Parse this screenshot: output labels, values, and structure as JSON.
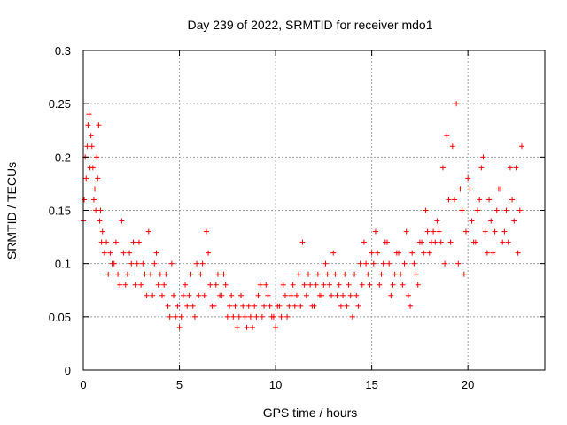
{
  "chart_data": {
    "type": "scatter",
    "title": "Day 239 of 2022, SRMTID for receiver mdo1",
    "xlabel": "GPS time / hours",
    "ylabel": "SRMTID / TECUs",
    "xlim": [
      0,
      24
    ],
    "ylim": [
      0,
      0.3
    ],
    "xticks": [
      0,
      5,
      10,
      15,
      20
    ],
    "xtick_labels": [
      "0",
      "5",
      "10",
      "15",
      "20"
    ],
    "yticks": [
      0,
      0.05,
      0.1,
      0.15,
      0.2,
      0.25,
      0.3
    ],
    "ytick_labels": [
      "0",
      "0.05",
      "0.1",
      "0.15",
      "0.2",
      "0.25",
      "0.3"
    ],
    "grid": true,
    "marker": "+",
    "color": "#ff0000",
    "series": [
      {
        "name": "mdo1",
        "x": [
          0.0,
          0.1,
          0.2,
          0.3,
          0.4,
          0.5,
          0.6,
          0.7,
          0.8,
          0.9,
          1.0,
          1.2,
          1.4,
          1.6,
          1.8,
          2.0,
          2.2,
          2.4,
          2.6,
          2.8,
          3.0,
          3.2,
          3.4,
          3.6,
          3.8,
          4.0,
          4.2,
          4.4,
          4.6,
          4.8,
          5.0,
          5.2,
          5.4,
          5.6,
          5.8,
          6.0,
          6.2,
          6.4,
          6.6,
          6.8,
          7.0,
          7.2,
          7.4,
          7.6,
          7.8,
          8.0,
          8.2,
          8.4,
          8.6,
          8.8,
          9.0,
          9.2,
          9.4,
          9.6,
          9.8,
          10.0,
          10.2,
          10.4,
          10.6,
          10.8,
          11.0,
          11.2,
          11.4,
          11.6,
          11.8,
          12.0,
          12.2,
          12.4,
          12.6,
          12.8,
          13.0,
          13.2,
          13.4,
          13.6,
          13.8,
          14.0,
          14.2,
          14.4,
          14.6,
          14.8,
          15.0,
          15.2,
          15.4,
          15.6,
          15.8,
          16.0,
          16.2,
          16.4,
          16.6,
          16.8,
          17.0,
          17.2,
          17.4,
          17.6,
          17.8,
          18.0,
          18.2,
          18.4,
          18.6,
          18.8,
          19.0,
          19.2,
          19.4,
          19.6,
          19.8,
          20.0,
          20.2,
          20.4,
          20.6,
          20.8,
          21.0,
          21.2,
          21.4,
          21.6,
          21.8,
          22.0,
          22.2,
          22.4,
          22.6,
          22.8,
          0.05,
          0.15,
          0.25,
          0.35,
          0.45,
          0.55,
          0.65,
          0.75,
          0.85,
          0.95,
          1.1,
          1.3,
          1.5,
          1.7,
          1.9,
          2.1,
          2.3,
          2.5,
          2.7,
          2.9,
          3.1,
          3.3,
          3.5,
          3.7,
          3.9,
          4.1,
          4.3,
          4.5,
          4.7,
          4.9,
          5.1,
          5.3,
          5.5,
          5.7,
          5.9,
          6.1,
          6.3,
          6.5,
          6.7,
          6.9,
          7.1,
          7.3,
          7.5,
          7.7,
          7.9,
          8.1,
          8.3,
          8.5,
          8.7,
          8.9,
          9.1,
          9.3,
          9.5,
          9.7,
          9.9,
          10.1,
          10.3,
          10.5,
          10.7,
          10.9,
          11.1,
          11.3,
          11.5,
          11.7,
          11.9,
          12.1,
          12.3,
          12.5,
          12.7,
          12.9,
          13.1,
          13.3,
          13.5,
          13.7,
          13.9,
          14.1,
          14.3,
          14.5,
          14.7,
          14.9,
          15.1,
          15.3,
          15.5,
          15.7,
          15.9,
          16.1,
          16.3,
          16.5,
          16.7,
          16.9,
          17.1,
          17.3,
          17.5,
          17.7,
          17.9,
          18.1,
          18.3,
          18.5,
          18.7,
          18.9,
          19.1,
          19.3,
          19.5,
          19.7,
          19.9,
          20.1,
          20.3,
          20.5,
          20.7,
          20.9,
          21.1,
          21.3,
          21.5,
          21.7,
          21.9,
          22.1,
          22.3,
          22.5,
          22.7
        ],
        "y": [
          0.14,
          0.2,
          0.21,
          0.24,
          0.22,
          0.19,
          0.17,
          0.2,
          0.23,
          0.15,
          0.13,
          0.12,
          0.11,
          0.1,
          0.09,
          0.14,
          0.08,
          0.11,
          0.12,
          0.1,
          0.08,
          0.09,
          0.13,
          0.07,
          0.11,
          0.09,
          0.08,
          0.06,
          0.1,
          0.05,
          0.04,
          0.07,
          0.06,
          0.09,
          0.05,
          0.07,
          0.1,
          0.13,
          0.08,
          0.06,
          0.09,
          0.07,
          0.08,
          0.06,
          0.05,
          0.04,
          0.07,
          0.05,
          0.06,
          0.04,
          0.05,
          0.08,
          0.06,
          0.07,
          0.05,
          0.04,
          0.06,
          0.08,
          0.05,
          0.07,
          0.06,
          0.09,
          0.12,
          0.07,
          0.08,
          0.06,
          0.09,
          0.07,
          0.1,
          0.08,
          0.11,
          0.07,
          0.06,
          0.09,
          0.08,
          0.05,
          0.07,
          0.1,
          0.12,
          0.09,
          0.11,
          0.13,
          0.08,
          0.1,
          0.12,
          0.07,
          0.09,
          0.11,
          0.08,
          0.13,
          0.06,
          0.1,
          0.08,
          0.12,
          0.15,
          0.11,
          0.13,
          0.14,
          0.12,
          0.1,
          0.16,
          0.21,
          0.25,
          0.17,
          0.09,
          0.18,
          0.14,
          0.12,
          0.16,
          0.2,
          0.11,
          0.14,
          0.13,
          0.17,
          0.12,
          0.15,
          0.19,
          0.14,
          0.11,
          0.21,
          0.16,
          0.18,
          0.23,
          0.19,
          0.21,
          0.16,
          0.15,
          0.18,
          0.14,
          0.12,
          0.11,
          0.09,
          0.1,
          0.12,
          0.08,
          0.11,
          0.09,
          0.1,
          0.08,
          0.12,
          0.1,
          0.07,
          0.09,
          0.1,
          0.08,
          0.07,
          0.09,
          0.05,
          0.07,
          0.06,
          0.05,
          0.08,
          0.07,
          0.06,
          0.1,
          0.09,
          0.07,
          0.11,
          0.06,
          0.08,
          0.07,
          0.09,
          0.05,
          0.07,
          0.06,
          0.05,
          0.06,
          0.04,
          0.05,
          0.06,
          0.07,
          0.05,
          0.08,
          0.06,
          0.05,
          0.06,
          0.05,
          0.07,
          0.06,
          0.08,
          0.07,
          0.06,
          0.08,
          0.09,
          0.06,
          0.08,
          0.07,
          0.08,
          0.09,
          0.07,
          0.09,
          0.08,
          0.07,
          0.06,
          0.07,
          0.09,
          0.06,
          0.08,
          0.1,
          0.08,
          0.1,
          0.11,
          0.09,
          0.12,
          0.1,
          0.08,
          0.11,
          0.09,
          0.1,
          0.07,
          0.11,
          0.09,
          0.12,
          0.11,
          0.13,
          0.12,
          0.12,
          0.13,
          0.19,
          0.22,
          0.12,
          0.16,
          0.1,
          0.15,
          0.13,
          0.17,
          0.12,
          0.15,
          0.19,
          0.13,
          0.16,
          0.11,
          0.15,
          0.17,
          0.13,
          0.12,
          0.16,
          0.19,
          0.15
        ]
      }
    ]
  }
}
